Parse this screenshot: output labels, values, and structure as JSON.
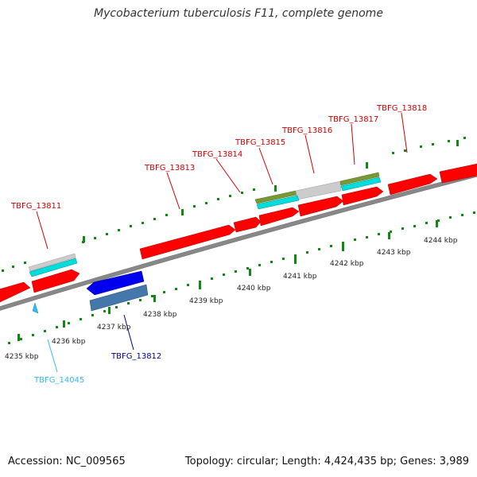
{
  "header": {
    "title": "Mycobacterium tuberculosis F11, complete genome"
  },
  "footer": {
    "accession": "Accession: NC_009565",
    "summary": "Topology: circular; Length: 4,424,435 bp; Genes: 3,989"
  },
  "colors": {
    "forward_cds": "#ff0000",
    "reverse_cds": "#0000ee",
    "label_forward": "#cc0000",
    "label_reverse": "#00008b",
    "label_other": "#33bbee",
    "backbone": "#888888",
    "ticks": "#118811"
  },
  "genes": [
    {
      "id": "TBFG_13811",
      "label": "TBFG_13811"
    },
    {
      "id": "TBFG_13812",
      "label": "TBFG_13812"
    },
    {
      "id": "TBFG_13813",
      "label": "TBFG_13813"
    },
    {
      "id": "TBFG_13814",
      "label": "TBFG_13814"
    },
    {
      "id": "TBFG_13815",
      "label": "TBFG_13815"
    },
    {
      "id": "TBFG_13816",
      "label": "TBFG_13816"
    },
    {
      "id": "TBFG_13817",
      "label": "TBFG_13817"
    },
    {
      "id": "TBFG_13818",
      "label": "TBFG_13818"
    },
    {
      "id": "TBFG_14045",
      "label": "TBFG_14045"
    }
  ],
  "scale": {
    "labels": [
      "4235 kbp",
      "4236 kbp",
      "4237 kbp",
      "4238 kbp",
      "4239 kbp",
      "4240 kbp",
      "4241 kbp",
      "4242 kbp",
      "4243 kbp",
      "4244 kbp"
    ]
  }
}
